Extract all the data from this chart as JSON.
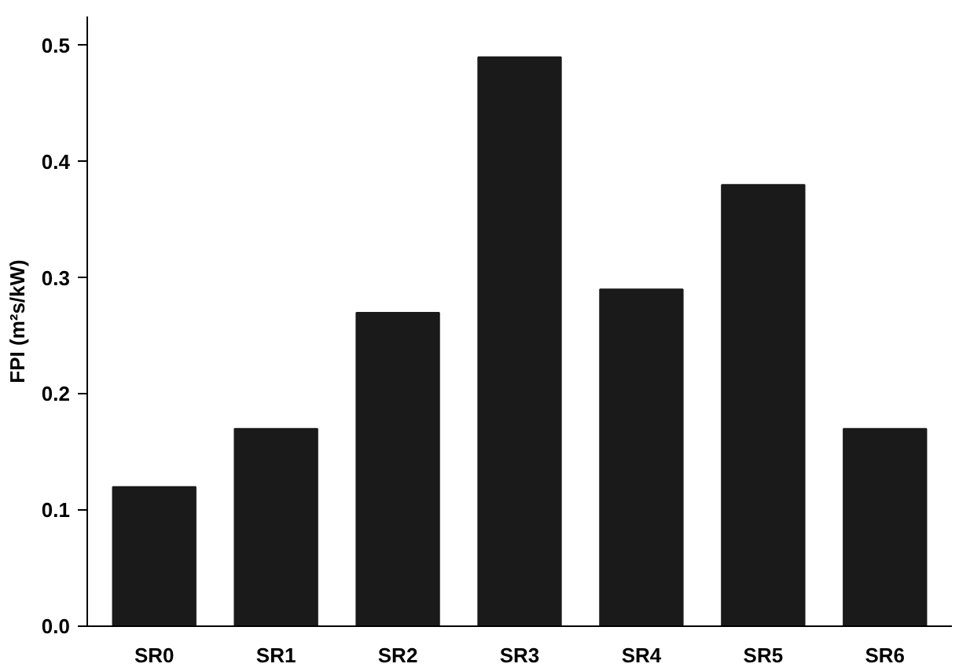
{
  "chart_data": {
    "type": "bar",
    "ylabel": "FPI (m²s/kW)",
    "categories": [
      "SR0",
      "SR1",
      "SR2",
      "SR3",
      "SR4",
      "SR5",
      "SR6"
    ],
    "values": [
      0.12,
      0.17,
      0.27,
      0.49,
      0.29,
      0.38,
      0.17
    ],
    "color": "#1a1a1a",
    "ylim": [
      0,
      0.525
    ],
    "yticks": [
      {
        "value": 0,
        "label": "0.0"
      },
      0.1,
      0.2,
      0.3,
      0.4,
      0.5
    ],
    "grid": false
  }
}
